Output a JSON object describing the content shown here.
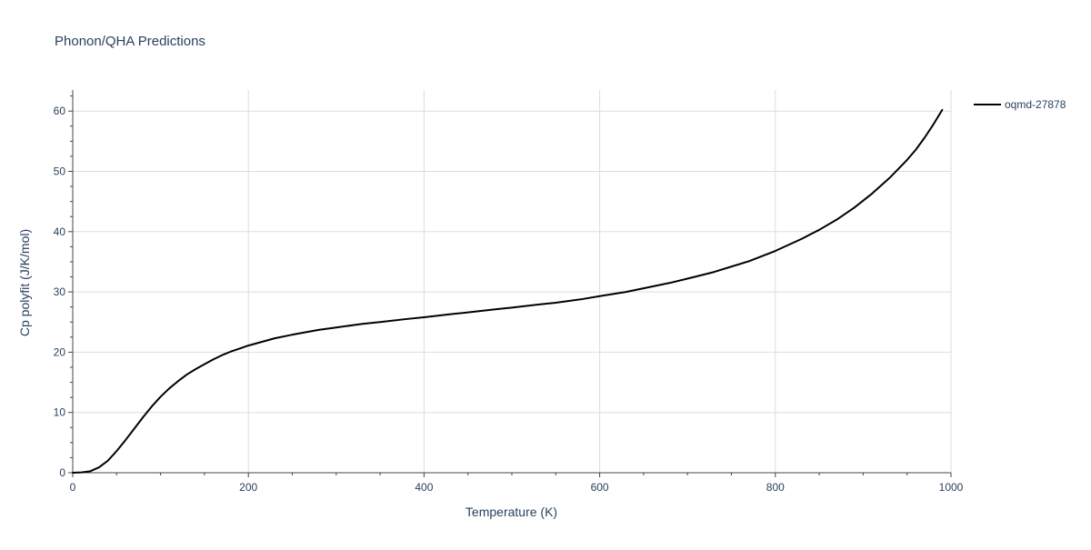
{
  "chart_data": {
    "type": "line",
    "title": "Phonon/QHA Predictions",
    "xlabel": "Temperature (K)",
    "ylabel": "Cp polyfit (J/K/mol)",
    "xlim": [
      0,
      1000
    ],
    "ylim": [
      0,
      63.5
    ],
    "x_ticks": [
      0,
      200,
      400,
      600,
      800,
      1000
    ],
    "y_ticks": [
      0,
      10,
      20,
      30,
      40,
      50,
      60
    ],
    "x_tick_labels": [
      "0",
      "200",
      "400",
      "600",
      "800",
      "1000"
    ],
    "y_tick_labels": [
      "0",
      "10",
      "20",
      "30",
      "40",
      "50",
      "60"
    ],
    "grid": true,
    "legend_position": "top-right",
    "series": [
      {
        "name": "oqmd-27878",
        "color": "#000000",
        "x": [
          0,
          10,
          20,
          30,
          40,
          50,
          60,
          70,
          80,
          90,
          100,
          110,
          120,
          130,
          140,
          150,
          160,
          170,
          180,
          190,
          200,
          230,
          250,
          280,
          300,
          330,
          350,
          380,
          400,
          430,
          450,
          480,
          500,
          530,
          550,
          580,
          600,
          630,
          650,
          680,
          700,
          730,
          750,
          770,
          800,
          830,
          850,
          870,
          890,
          910,
          930,
          950,
          960,
          970,
          980,
          990
        ],
        "y": [
          0.0,
          0.05,
          0.25,
          0.9,
          2.0,
          3.6,
          5.4,
          7.3,
          9.2,
          11.0,
          12.6,
          14.0,
          15.2,
          16.3,
          17.2,
          18.0,
          18.8,
          19.5,
          20.1,
          20.6,
          21.1,
          22.3,
          22.9,
          23.7,
          24.1,
          24.7,
          25.0,
          25.5,
          25.8,
          26.3,
          26.6,
          27.1,
          27.4,
          27.9,
          28.2,
          28.8,
          29.3,
          30.0,
          30.6,
          31.5,
          32.2,
          33.3,
          34.2,
          35.1,
          36.8,
          38.8,
          40.3,
          42.0,
          44.0,
          46.3,
          48.9,
          51.9,
          53.6,
          55.6,
          57.8,
          60.2
        ]
      }
    ]
  }
}
